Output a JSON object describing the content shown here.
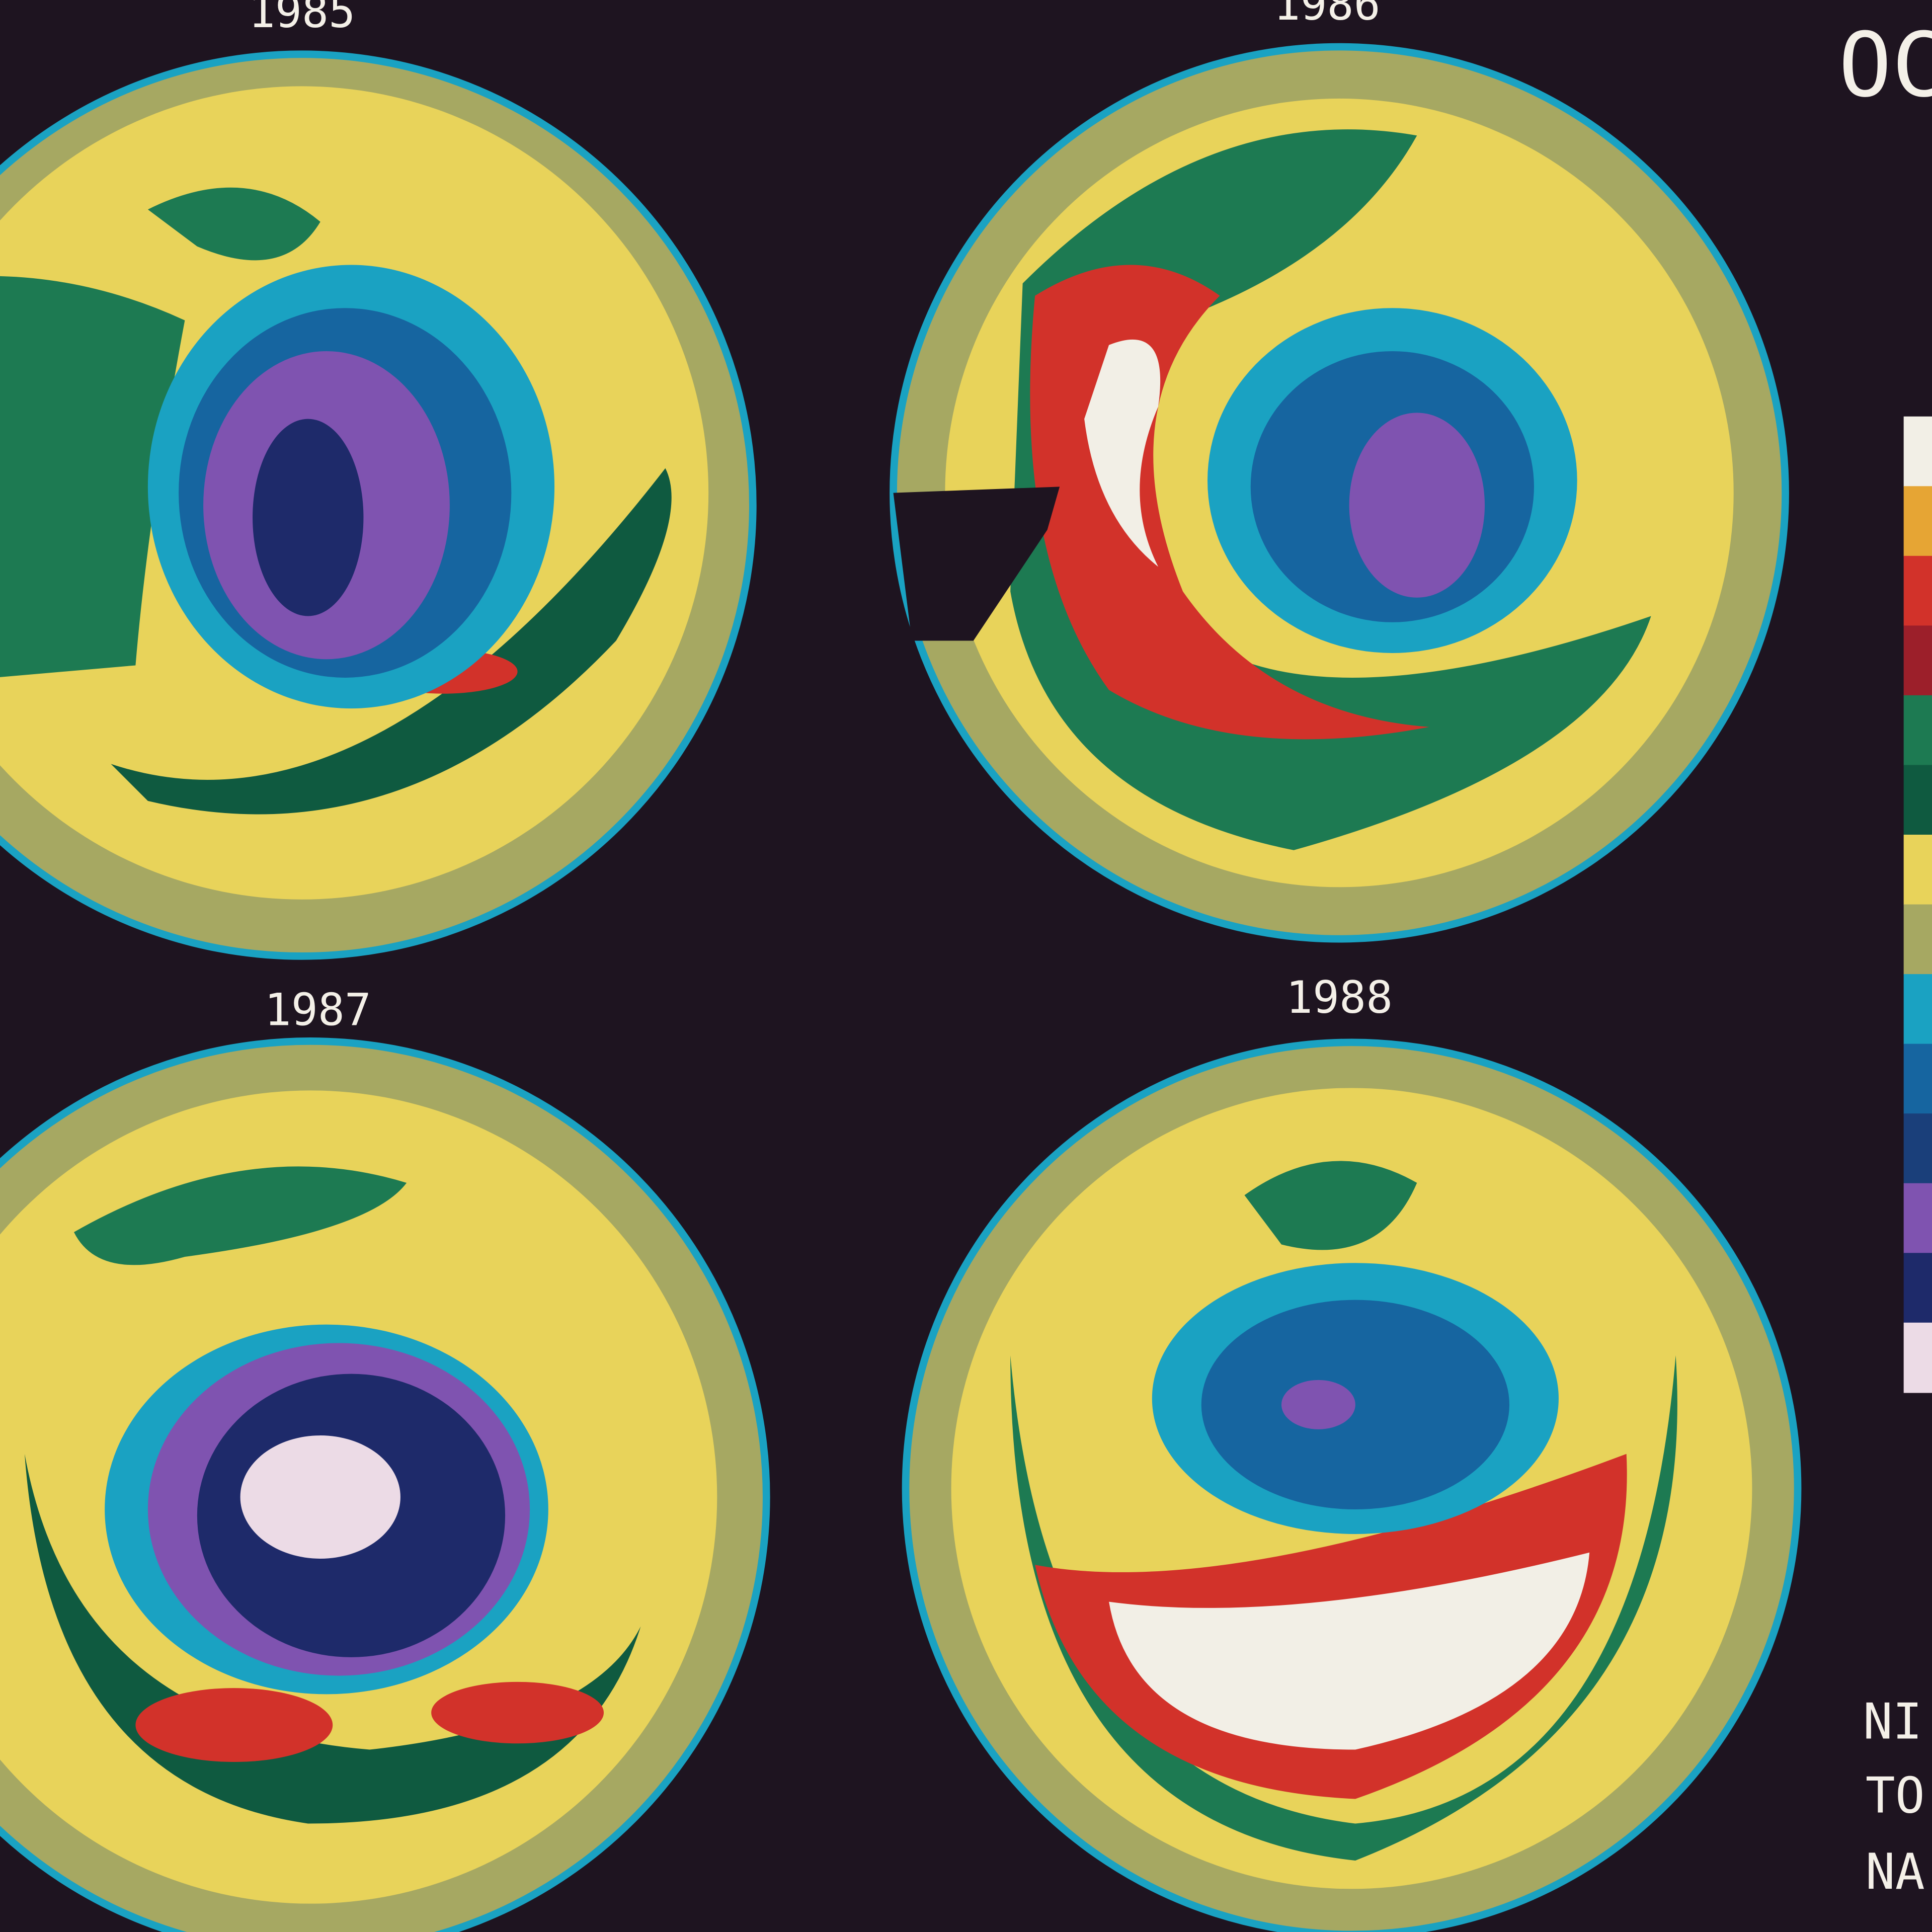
{
  "panels": [
    {
      "label": "1985"
    },
    {
      "label": "1986"
    },
    {
      "label": "1987"
    },
    {
      "label": "1988"
    }
  ],
  "header": "OC",
  "footer": [
    "NI",
    "TO",
    "NA"
  ],
  "color_scale": [
    "#f2efe6",
    "#e6a534",
    "#d2322a",
    "#9c1f2a",
    "#1d7a52",
    "#0f5a40",
    "#e8d35a",
    "#a6a862",
    "#1aa2c2",
    "#1665a0",
    "#1a3f7a",
    "#7f53b0",
    "#1e2a6a",
    "#ecdbe6"
  ]
}
